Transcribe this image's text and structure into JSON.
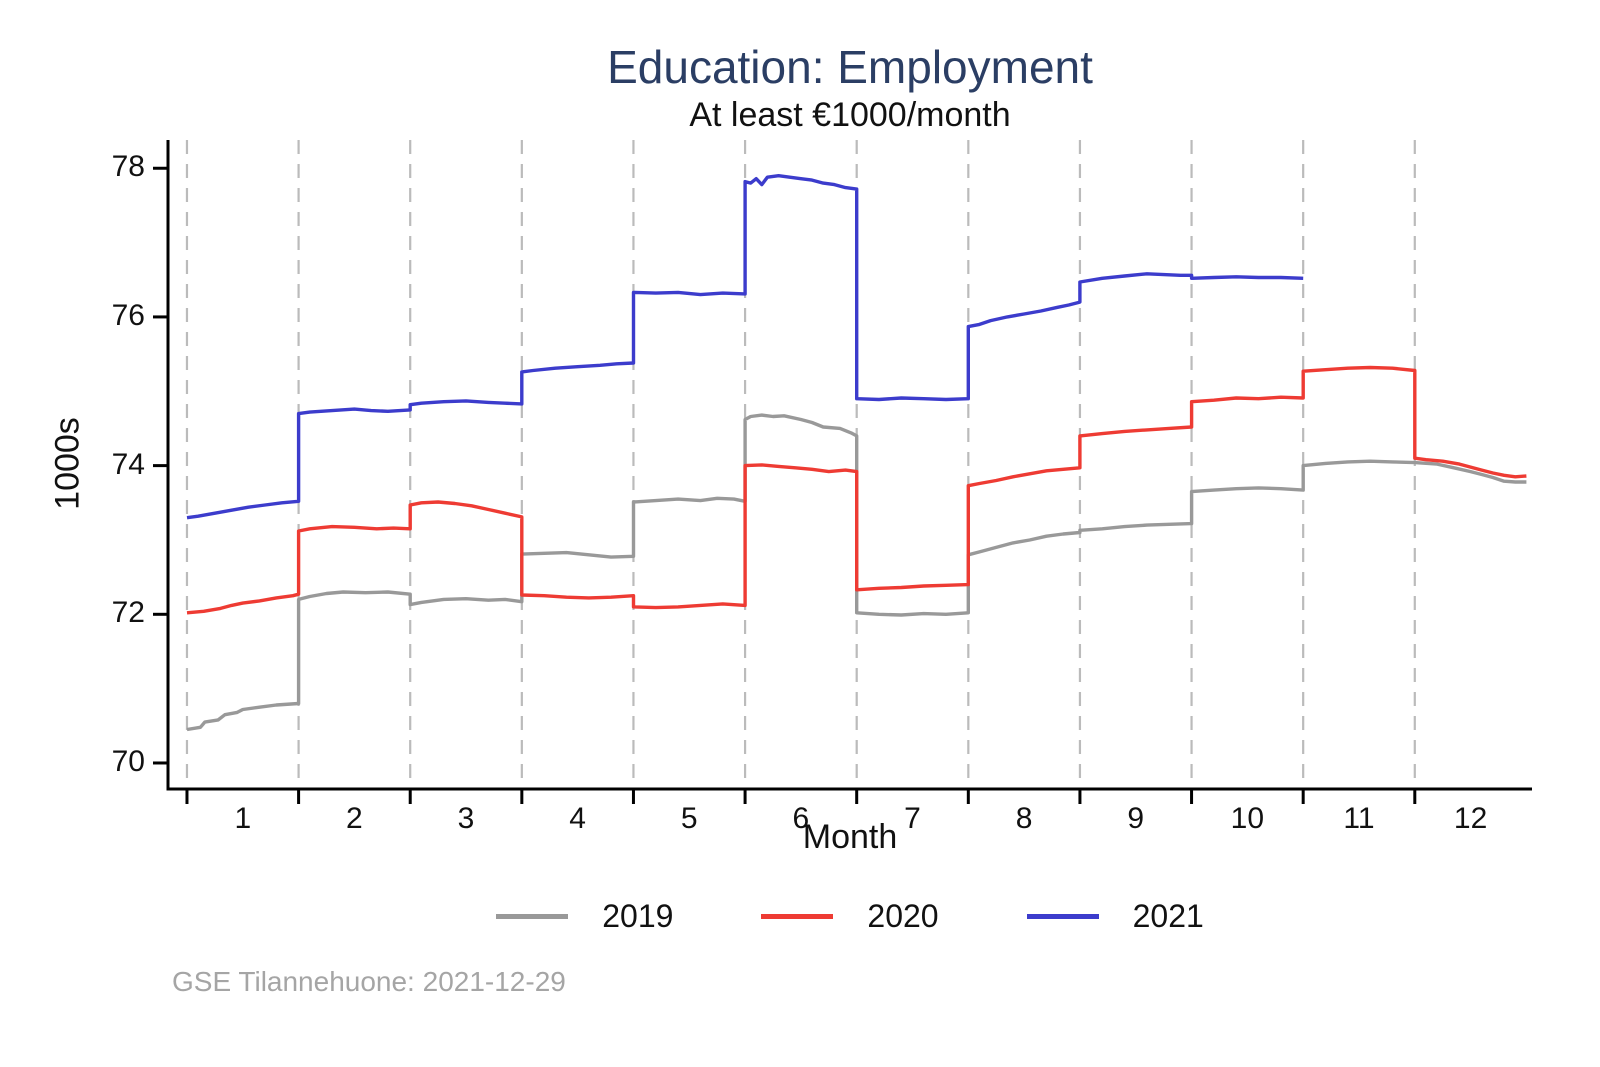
{
  "header": {
    "title": "Education: Employment",
    "subtitle": "At least €1000/month"
  },
  "footer": {
    "source": "GSE Tilannehuone: 2021-12-29"
  },
  "chart_data": {
    "type": "line",
    "title": "Education: Employment",
    "subtitle": "At least €1000/month",
    "xlabel": "Month",
    "ylabel": "1000s",
    "x_ticks": [
      1,
      2,
      3,
      4,
      5,
      6,
      7,
      8,
      9,
      10,
      11,
      12
    ],
    "y_ticks": [
      70,
      72,
      74,
      76,
      78
    ],
    "xlim": [
      0.33,
      12.55
    ],
    "ylim": [
      69.65,
      78.38
    ],
    "grid": "vertical-dashed-month-boundaries",
    "legend_position": "bottom",
    "axis_color": "#000000",
    "grid_color": "#bbbbbb",
    "title_color": "#2b3e64",
    "series": [
      {
        "name": "2019",
        "color": "#999999",
        "points": [
          [
            0.5,
            70.45
          ],
          [
            0.62,
            70.48
          ],
          [
            0.66,
            70.55
          ],
          [
            0.78,
            70.58
          ],
          [
            0.84,
            70.65
          ],
          [
            0.95,
            70.68
          ],
          [
            1.0,
            70.72
          ],
          [
            1.15,
            70.75
          ],
          [
            1.3,
            70.78
          ],
          [
            1.5,
            70.8
          ],
          [
            1.5,
            72.2
          ],
          [
            1.6,
            72.24
          ],
          [
            1.75,
            72.28
          ],
          [
            1.9,
            72.3
          ],
          [
            2.1,
            72.29
          ],
          [
            2.3,
            72.3
          ],
          [
            2.5,
            72.27
          ],
          [
            2.5,
            72.13
          ],
          [
            2.6,
            72.16
          ],
          [
            2.8,
            72.2
          ],
          [
            3.0,
            72.21
          ],
          [
            3.2,
            72.19
          ],
          [
            3.35,
            72.2
          ],
          [
            3.5,
            72.17
          ],
          [
            3.5,
            72.81
          ],
          [
            3.7,
            72.82
          ],
          [
            3.9,
            72.83
          ],
          [
            4.1,
            72.8
          ],
          [
            4.3,
            72.77
          ],
          [
            4.5,
            72.78
          ],
          [
            4.5,
            73.51
          ],
          [
            4.7,
            73.53
          ],
          [
            4.9,
            73.55
          ],
          [
            5.1,
            73.53
          ],
          [
            5.25,
            73.56
          ],
          [
            5.4,
            73.55
          ],
          [
            5.5,
            73.52
          ],
          [
            5.5,
            74.62
          ],
          [
            5.55,
            74.66
          ],
          [
            5.65,
            74.68
          ],
          [
            5.75,
            74.66
          ],
          [
            5.85,
            74.67
          ],
          [
            6.0,
            74.62
          ],
          [
            6.1,
            74.58
          ],
          [
            6.2,
            74.52
          ],
          [
            6.35,
            74.5
          ],
          [
            6.45,
            74.44
          ],
          [
            6.5,
            74.4
          ],
          [
            6.5,
            72.02
          ],
          [
            6.7,
            72.0
          ],
          [
            6.9,
            71.99
          ],
          [
            7.1,
            72.01
          ],
          [
            7.3,
            72.0
          ],
          [
            7.5,
            72.02
          ],
          [
            7.5,
            72.8
          ],
          [
            7.6,
            72.84
          ],
          [
            7.75,
            72.9
          ],
          [
            7.9,
            72.96
          ],
          [
            8.05,
            73.0
          ],
          [
            8.2,
            73.05
          ],
          [
            8.35,
            73.08
          ],
          [
            8.5,
            73.1
          ],
          [
            8.5,
            73.13
          ],
          [
            8.7,
            73.15
          ],
          [
            8.9,
            73.18
          ],
          [
            9.1,
            73.2
          ],
          [
            9.3,
            73.21
          ],
          [
            9.5,
            73.22
          ],
          [
            9.5,
            73.65
          ],
          [
            9.7,
            73.67
          ],
          [
            9.9,
            73.69
          ],
          [
            10.1,
            73.7
          ],
          [
            10.3,
            73.69
          ],
          [
            10.5,
            73.67
          ],
          [
            10.5,
            74.0
          ],
          [
            10.7,
            74.03
          ],
          [
            10.9,
            74.05
          ],
          [
            11.1,
            74.06
          ],
          [
            11.3,
            74.05
          ],
          [
            11.5,
            74.04
          ],
          [
            11.7,
            74.02
          ],
          [
            11.85,
            73.97
          ],
          [
            12.0,
            73.92
          ],
          [
            12.1,
            73.88
          ],
          [
            12.2,
            73.84
          ],
          [
            12.3,
            73.79
          ],
          [
            12.4,
            73.78
          ],
          [
            12.5,
            73.78
          ]
        ]
      },
      {
        "name": "2020",
        "color": "#ee3b33",
        "points": [
          [
            0.5,
            72.02
          ],
          [
            0.65,
            72.04
          ],
          [
            0.8,
            72.08
          ],
          [
            0.9,
            72.12
          ],
          [
            1.0,
            72.15
          ],
          [
            1.15,
            72.18
          ],
          [
            1.3,
            72.22
          ],
          [
            1.45,
            72.25
          ],
          [
            1.5,
            72.27
          ],
          [
            1.5,
            73.12
          ],
          [
            1.6,
            73.15
          ],
          [
            1.8,
            73.18
          ],
          [
            2.0,
            73.17
          ],
          [
            2.2,
            73.15
          ],
          [
            2.35,
            73.16
          ],
          [
            2.5,
            73.15
          ],
          [
            2.5,
            73.47
          ],
          [
            2.6,
            73.5
          ],
          [
            2.75,
            73.51
          ],
          [
            2.9,
            73.49
          ],
          [
            3.05,
            73.46
          ],
          [
            3.2,
            73.41
          ],
          [
            3.35,
            73.36
          ],
          [
            3.5,
            73.31
          ],
          [
            3.5,
            72.26
          ],
          [
            3.7,
            72.25
          ],
          [
            3.9,
            72.23
          ],
          [
            4.1,
            72.22
          ],
          [
            4.3,
            72.23
          ],
          [
            4.5,
            72.25
          ],
          [
            4.5,
            72.1
          ],
          [
            4.7,
            72.09
          ],
          [
            4.9,
            72.1
          ],
          [
            5.1,
            72.12
          ],
          [
            5.3,
            72.14
          ],
          [
            5.5,
            72.12
          ],
          [
            5.5,
            74.0
          ],
          [
            5.65,
            74.01
          ],
          [
            5.8,
            73.99
          ],
          [
            5.95,
            73.97
          ],
          [
            6.1,
            73.95
          ],
          [
            6.25,
            73.92
          ],
          [
            6.4,
            73.94
          ],
          [
            6.5,
            73.92
          ],
          [
            6.5,
            72.33
          ],
          [
            6.7,
            72.35
          ],
          [
            6.9,
            72.36
          ],
          [
            7.1,
            72.38
          ],
          [
            7.3,
            72.39
          ],
          [
            7.5,
            72.4
          ],
          [
            7.5,
            73.73
          ],
          [
            7.6,
            73.76
          ],
          [
            7.75,
            73.8
          ],
          [
            7.9,
            73.85
          ],
          [
            8.05,
            73.89
          ],
          [
            8.2,
            73.93
          ],
          [
            8.35,
            73.95
          ],
          [
            8.5,
            73.97
          ],
          [
            8.5,
            74.4
          ],
          [
            8.7,
            74.43
          ],
          [
            8.9,
            74.46
          ],
          [
            9.1,
            74.48
          ],
          [
            9.3,
            74.5
          ],
          [
            9.5,
            74.52
          ],
          [
            9.5,
            74.86
          ],
          [
            9.7,
            74.88
          ],
          [
            9.9,
            74.91
          ],
          [
            10.1,
            74.9
          ],
          [
            10.3,
            74.92
          ],
          [
            10.5,
            74.91
          ],
          [
            10.5,
            75.27
          ],
          [
            10.7,
            75.29
          ],
          [
            10.9,
            75.31
          ],
          [
            11.1,
            75.32
          ],
          [
            11.3,
            75.31
          ],
          [
            11.5,
            75.28
          ],
          [
            11.5,
            74.1
          ],
          [
            11.6,
            74.08
          ],
          [
            11.75,
            74.06
          ],
          [
            11.9,
            74.02
          ],
          [
            12.0,
            73.98
          ],
          [
            12.1,
            73.94
          ],
          [
            12.2,
            73.9
          ],
          [
            12.3,
            73.87
          ],
          [
            12.4,
            73.85
          ],
          [
            12.5,
            73.86
          ]
        ]
      },
      {
        "name": "2021",
        "color": "#3c3ccc",
        "points": [
          [
            0.5,
            73.3
          ],
          [
            0.6,
            73.32
          ],
          [
            0.75,
            73.36
          ],
          [
            0.9,
            73.4
          ],
          [
            1.05,
            73.44
          ],
          [
            1.2,
            73.47
          ],
          [
            1.35,
            73.5
          ],
          [
            1.5,
            73.52
          ],
          [
            1.5,
            74.7
          ],
          [
            1.6,
            74.72
          ],
          [
            1.8,
            74.74
          ],
          [
            2.0,
            74.76
          ],
          [
            2.15,
            74.74
          ],
          [
            2.3,
            74.73
          ],
          [
            2.5,
            74.75
          ],
          [
            2.5,
            74.82
          ],
          [
            2.6,
            74.84
          ],
          [
            2.8,
            74.86
          ],
          [
            3.0,
            74.87
          ],
          [
            3.2,
            74.85
          ],
          [
            3.35,
            74.84
          ],
          [
            3.5,
            74.83
          ],
          [
            3.5,
            75.26
          ],
          [
            3.6,
            75.28
          ],
          [
            3.8,
            75.31
          ],
          [
            4.0,
            75.33
          ],
          [
            4.2,
            75.35
          ],
          [
            4.35,
            75.37
          ],
          [
            4.5,
            75.38
          ],
          [
            4.5,
            76.33
          ],
          [
            4.7,
            76.32
          ],
          [
            4.9,
            76.33
          ],
          [
            5.1,
            76.3
          ],
          [
            5.3,
            76.32
          ],
          [
            5.5,
            76.31
          ],
          [
            5.5,
            77.82
          ],
          [
            5.55,
            77.8
          ],
          [
            5.6,
            77.86
          ],
          [
            5.65,
            77.78
          ],
          [
            5.7,
            77.88
          ],
          [
            5.8,
            77.9
          ],
          [
            5.9,
            77.88
          ],
          [
            6.0,
            77.86
          ],
          [
            6.1,
            77.84
          ],
          [
            6.2,
            77.8
          ],
          [
            6.3,
            77.78
          ],
          [
            6.4,
            77.74
          ],
          [
            6.5,
            77.72
          ],
          [
            6.5,
            74.9
          ],
          [
            6.7,
            74.89
          ],
          [
            6.9,
            74.91
          ],
          [
            7.1,
            74.9
          ],
          [
            7.3,
            74.89
          ],
          [
            7.5,
            74.9
          ],
          [
            7.5,
            75.87
          ],
          [
            7.6,
            75.9
          ],
          [
            7.7,
            75.95
          ],
          [
            7.85,
            76.0
          ],
          [
            8.0,
            76.04
          ],
          [
            8.15,
            76.08
          ],
          [
            8.3,
            76.13
          ],
          [
            8.4,
            76.16
          ],
          [
            8.5,
            76.2
          ],
          [
            8.5,
            76.47
          ],
          [
            8.7,
            76.52
          ],
          [
            8.9,
            76.55
          ],
          [
            9.1,
            76.58
          ],
          [
            9.25,
            76.57
          ],
          [
            9.4,
            76.56
          ],
          [
            9.5,
            76.56
          ],
          [
            9.5,
            76.52
          ],
          [
            9.7,
            76.53
          ],
          [
            9.9,
            76.54
          ],
          [
            10.1,
            76.53
          ],
          [
            10.3,
            76.53
          ],
          [
            10.5,
            76.52
          ]
        ]
      }
    ]
  }
}
